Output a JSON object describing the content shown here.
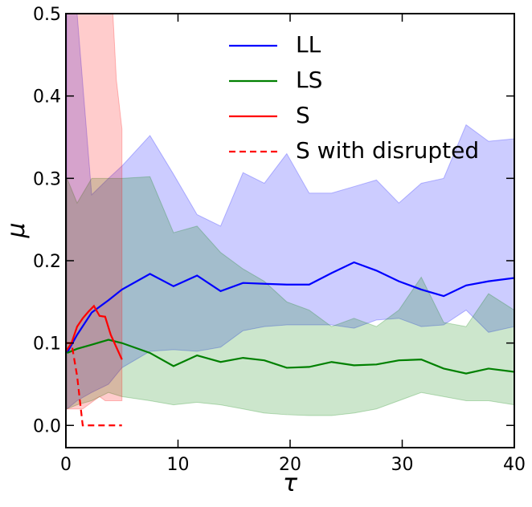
{
  "chart_data": {
    "type": "line",
    "xlabel": "τ",
    "ylabel": "μ",
    "xlim": [
      0,
      40
    ],
    "ylim": [
      -0.027,
      0.5
    ],
    "xticks": [
      0,
      10,
      20,
      30,
      40
    ],
    "yticks": [
      {
        "value": 0,
        "label": "0.0"
      },
      0.1,
      0.2,
      0.3,
      0.4,
      0.5
    ],
    "legend": "upper center",
    "series": [
      {
        "name": "LL",
        "color": "#0000ff",
        "linestyle": "solid",
        "x": [
          0.1,
          1,
          2.3,
          3.8,
          5,
          7.5,
          9.6,
          11.7,
          13.8,
          15.8,
          17.7,
          19.7,
          21.7,
          23.7,
          25.7,
          27.7,
          29.7,
          31.7,
          33.7,
          35.7,
          37.7,
          40
        ],
        "values": [
          0.088,
          0.11,
          0.137,
          0.152,
          0.165,
          0.184,
          0.169,
          0.182,
          0.163,
          0.173,
          0.172,
          0.171,
          0.171,
          0.185,
          0.198,
          0.188,
          0.175,
          0.165,
          0.157,
          0.17,
          0.175,
          0.179
        ],
        "upper": [
          0.6,
          0.5,
          0.28,
          0.3,
          0.315,
          0.352,
          0.305,
          0.256,
          0.242,
          0.307,
          0.294,
          0.33,
          0.282,
          0.282,
          0.29,
          0.298,
          0.27,
          0.294,
          0.3,
          0.365,
          0.345,
          0.348
        ],
        "lower": [
          0.02,
          0.03,
          0.04,
          0.05,
          0.07,
          0.09,
          0.092,
          0.09,
          0.095,
          0.115,
          0.12,
          0.122,
          0.122,
          0.122,
          0.118,
          0.128,
          0.13,
          0.12,
          0.122,
          0.14,
          0.113,
          0.12
        ]
      },
      {
        "name": "LS",
        "color": "#008000",
        "linestyle": "solid",
        "x": [
          0.1,
          1,
          2.3,
          3.8,
          5,
          7.5,
          9.6,
          11.7,
          13.8,
          15.8,
          17.7,
          19.7,
          21.7,
          23.7,
          25.7,
          27.7,
          29.7,
          31.7,
          33.7,
          35.7,
          37.7,
          40
        ],
        "values": [
          0.088,
          0.093,
          0.098,
          0.104,
          0.1,
          0.088,
          0.072,
          0.085,
          0.077,
          0.082,
          0.079,
          0.07,
          0.071,
          0.077,
          0.073,
          0.074,
          0.079,
          0.08,
          0.069,
          0.063,
          0.069,
          0.065
        ],
        "upper": [
          0.3,
          0.27,
          0.3,
          0.3,
          0.3,
          0.302,
          0.234,
          0.242,
          0.21,
          0.19,
          0.175,
          0.15,
          0.14,
          0.12,
          0.13,
          0.12,
          0.14,
          0.18,
          0.125,
          0.12,
          0.16,
          0.14
        ],
        "lower": [
          0.02,
          0.025,
          0.03,
          0.04,
          0.035,
          0.03,
          0.025,
          0.028,
          0.025,
          0.02,
          0.015,
          0.013,
          0.012,
          0.012,
          0.015,
          0.02,
          0.03,
          0.04,
          0.035,
          0.03,
          0.03,
          0.025
        ]
      },
      {
        "name": "S",
        "color": "#ff0000",
        "linestyle": "solid",
        "x": [
          0,
          0.5,
          1,
          1.5,
          2,
          2.5,
          3,
          3.5,
          4,
          4.5,
          5
        ],
        "values": [
          0.09,
          0.1,
          0.12,
          0.13,
          0.138,
          0.145,
          0.133,
          0.132,
          0.11,
          0.095,
          0.08
        ],
        "upper": [
          0.6,
          0.6,
          0.6,
          0.6,
          0.6,
          0.6,
          0.6,
          0.6,
          0.55,
          0.42,
          0.36
        ],
        "lower": [
          0.02,
          0.02,
          0.02,
          0.02,
          0.025,
          0.03,
          0.035,
          0.03,
          0.03,
          0.03,
          0.03
        ]
      },
      {
        "name": "S with disrupted",
        "color": "#ff0000",
        "linestyle": "dashed",
        "x": [
          0,
          0.5,
          1,
          1.5,
          2,
          3,
          4,
          5
        ],
        "values": [
          0.1,
          0.1,
          0.06,
          0,
          0,
          0,
          0,
          0
        ]
      }
    ]
  }
}
